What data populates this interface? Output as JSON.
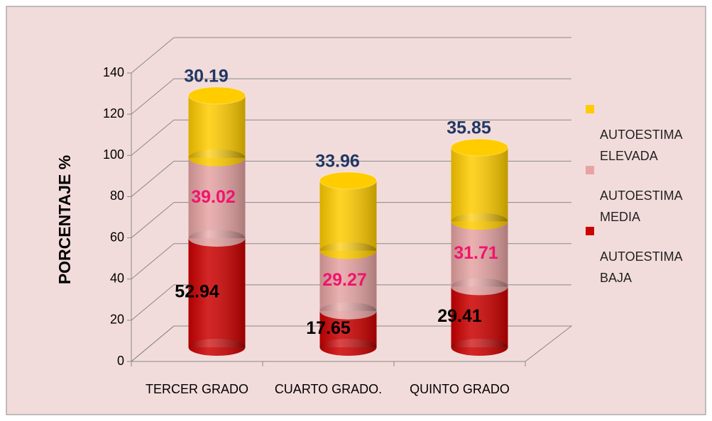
{
  "chart_data": {
    "type": "bar3d_stacked",
    "ylabel": "PORCENTAJE %",
    "categories": [
      "TERCER GRADO",
      "CUARTO GRADO.",
      "QUINTO GRADO"
    ],
    "series": [
      {
        "name": "AUTOESTIMA BAJA",
        "color": "#cc0000",
        "label_color": "#000000",
        "values": [
          52.94,
          17.65,
          29.41
        ]
      },
      {
        "name": "AUTOESTIMA MEDIA",
        "color": "#e6a3a3",
        "label_color": "#f0146e",
        "values": [
          39.02,
          29.27,
          31.71
        ]
      },
      {
        "name": "AUTOESTIMA ELEVADA",
        "color": "#ffcc00",
        "label_color": "#1f3864",
        "values": [
          30.19,
          33.96,
          35.85
        ]
      }
    ],
    "ylim": [
      0,
      140
    ],
    "yticks": [
      0,
      20,
      40,
      60,
      80,
      100,
      120,
      140
    ],
    "grid": true
  }
}
